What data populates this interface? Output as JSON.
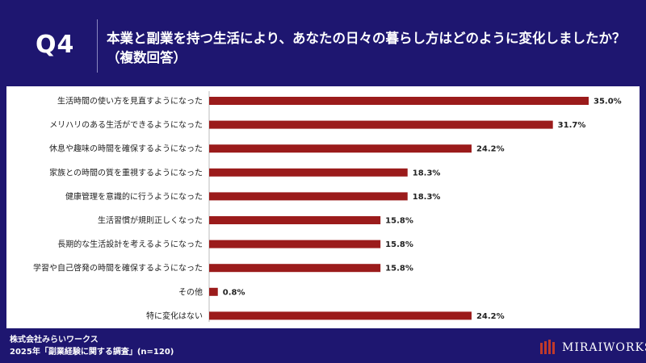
{
  "header": {
    "qnum": "Q4",
    "question_line1": "本業と副業を持つ生活により、あなたの日々の暮らし方はどのように変化しましたか？",
    "question_line2": "（複数回答）"
  },
  "footer": {
    "company": "株式会社みらいワークス",
    "survey": "2025年「副業経験に関する調査」(n=120)"
  },
  "logo": {
    "text": "MIRAIWORKS"
  },
  "colors": {
    "bar": "#9b1b1b",
    "background": "#1e1670"
  },
  "chart_data": {
    "type": "bar",
    "orientation": "horizontal",
    "title": "本業と副業を持つ生活により、あなたの日々の暮らし方はどのように変化しましたか？（複数回答）",
    "categories": [
      "生活時間の使い方を見直すようになった",
      "メリハリのある生活ができるようになった",
      "休息や趣味の時間を確保するようになった",
      "家族との時間の質を重視するようになった",
      "健康管理を意識的に行うようになった",
      "生活習慣が規則正しくなった",
      "長期的な生活設計を考えるようになった",
      "学習や自己啓発の時間を確保するようになった",
      "その他",
      "特に変化はない"
    ],
    "values": [
      35.0,
      31.7,
      24.2,
      18.3,
      18.3,
      15.8,
      15.8,
      15.8,
      0.8,
      24.2
    ],
    "value_labels": [
      "35.0%",
      "31.7%",
      "24.2%",
      "18.3%",
      "18.3%",
      "15.8%",
      "15.8%",
      "15.8%",
      "0.8%",
      "24.2%"
    ],
    "xlim": [
      0,
      35.0
    ],
    "unit": "%"
  }
}
